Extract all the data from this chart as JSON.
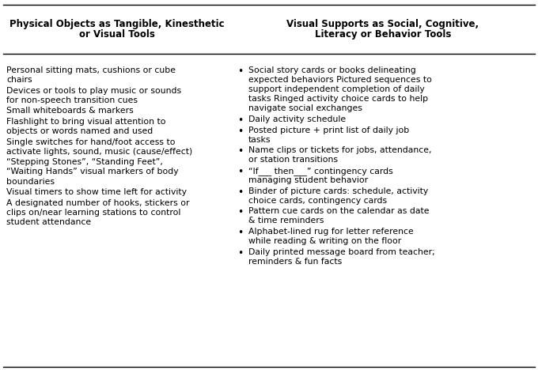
{
  "col1_header_lines": [
    "Physical Objects as Tangible, Kinesthetic",
    "or Visual Tools"
  ],
  "col2_header_lines": [
    "Visual Supports as Social, Cognitive,",
    "Literacy or Behavior Tools"
  ],
  "col1_items": [
    [
      "Personal sitting mats, cushions or cube",
      "chairs"
    ],
    [
      "Devices or tools to play music or sounds",
      "for non-speech transition cues"
    ],
    [
      "Small whiteboards & markers"
    ],
    [
      "Flashlight to bring visual attention to",
      "objects or words named and used"
    ],
    [
      "Single switches for hand/foot access to",
      "activate lights, sound, music (cause/effect)"
    ],
    [
      "“Stepping Stones”, “Standing Feet”,",
      "“Waiting Hands” visual markers of body",
      "boundaries"
    ],
    [
      "Visual timers to show time left for activity"
    ],
    [
      "A designated number of hooks, stickers or",
      "clips on/near learning stations to control",
      "student attendance"
    ]
  ],
  "col2_items": [
    [
      "Social story cards or books delineating",
      "expected behaviors Pictured sequences to",
      "support independent completion of daily",
      "tasks Ringed activity choice cards to help",
      "navigate social exchanges"
    ],
    [
      "Daily activity schedule"
    ],
    [
      "Posted picture + print list of daily job",
      "tasks"
    ],
    [
      "Name clips or tickets for jobs, attendance,",
      "or station transitions"
    ],
    [
      "“If___ then___” contingency cards",
      "managing student behavior"
    ],
    [
      "Binder of picture cards: schedule, activity",
      "choice cards, contingency cards"
    ],
    [
      "Pattern cue cards on the calendar as date",
      "& time reminders"
    ],
    [
      "Alphabet-lined rug for letter reference",
      "while reading & writing on the floor"
    ],
    [
      "Daily printed message board from teacher;",
      "reminders & fun facts"
    ]
  ],
  "bg_color": "#ffffff",
  "text_color": "#000000",
  "border_color": "#000000",
  "figsize": [
    6.8,
    4.68
  ],
  "dpi": 100,
  "header_fontsize": 8.5,
  "body_fontsize": 7.8
}
